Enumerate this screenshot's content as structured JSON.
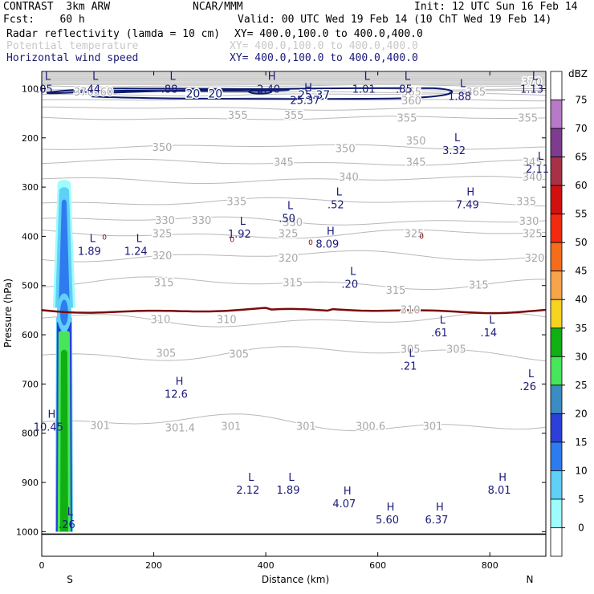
{
  "header": {
    "model": "CONTRAST  3km ARW",
    "org": "NCAR/MMM",
    "init": "Init: 12 UTC Sun 16 Feb 14",
    "fcst": "Fcst:    60 h",
    "valid": "Valid: 00 UTC Wed 19 Feb 14 (10 ChT Wed 19 Feb 14)",
    "fields": [
      {
        "name": "Radar reflectivity (lamda = 10 cm)",
        "xy": "XY= 400.0,100.0 to 400.0,400.0",
        "color": "#000000"
      },
      {
        "name": "Potential temperature",
        "xy": "XY= 400.0,100.0 to 400.0,400.0",
        "color": "#c8c8c8"
      },
      {
        "name": "Horizontal wind speed",
        "xy": "XY= 400.0,100.0 to 400.0,400.0",
        "color": "#1a1a7a"
      }
    ]
  },
  "chart_data": {
    "type": "cross-section",
    "xlabel": "Distance (km)",
    "ylabel": "Pressure (hPa)",
    "xlim": [
      0,
      900
    ],
    "ylim": [
      1050,
      65
    ],
    "x_ticks": [
      "0",
      "200",
      "400",
      "600",
      "800"
    ],
    "y_ticks": [
      "100",
      "200",
      "300",
      "400",
      "500",
      "600",
      "700",
      "800",
      "900",
      "1000"
    ],
    "x_end_labels": {
      "left": "S",
      "right": "N"
    },
    "colorbar": {
      "unit": "dBZ",
      "levels": [
        "0",
        "5",
        "10",
        "15",
        "20",
        "25",
        "30",
        "35",
        "40",
        "45",
        "50",
        "55",
        "60",
        "65",
        "70",
        "75"
      ],
      "colors": [
        "#ffffff",
        "#9ffcfc",
        "#5fd0f7",
        "#2e7bf0",
        "#2c3fd9",
        "#3b8cc2",
        "#47e65a",
        "#11b012",
        "#f5d31e",
        "#f7a54a",
        "#f56c1a",
        "#f22a0f",
        "#d21010",
        "#a83245",
        "#7e3c8e",
        "#b87ac8",
        "#ffffff"
      ]
    },
    "theta_labels": [
      {
        "t": "370",
        "x": 75,
        "p": 107
      },
      {
        "t": "370",
        "x": 875,
        "p": 87
      },
      {
        "t": "365",
        "x": 775,
        "p": 107
      },
      {
        "t": "365",
        "x": 660,
        "p": 107
      },
      {
        "t": "360",
        "x": 660,
        "p": 125
      },
      {
        "t": "360",
        "x": 110,
        "p": 107
      },
      {
        "t": "355",
        "x": 350,
        "p": 155
      },
      {
        "t": "355",
        "x": 450,
        "p": 155
      },
      {
        "t": "355",
        "x": 652,
        "p": 160
      },
      {
        "t": "355",
        "x": 868,
        "p": 160
      },
      {
        "t": "350",
        "x": 215,
        "p": 220
      },
      {
        "t": "350",
        "x": 542,
        "p": 222
      },
      {
        "t": "350",
        "x": 668,
        "p": 207
      },
      {
        "t": "345",
        "x": 432,
        "p": 250
      },
      {
        "t": "345",
        "x": 668,
        "p": 250
      },
      {
        "t": "345",
        "x": 876,
        "p": 250
      },
      {
        "t": "340",
        "x": 548,
        "p": 280
      },
      {
        "t": "340",
        "x": 876,
        "p": 280
      },
      {
        "t": "335",
        "x": 348,
        "p": 330
      },
      {
        "t": "335",
        "x": 865,
        "p": 330
      },
      {
        "t": "330",
        "x": 220,
        "p": 368
      },
      {
        "t": "330",
        "x": 285,
        "p": 368
      },
      {
        "t": "330",
        "x": 448,
        "p": 372
      },
      {
        "t": "330",
        "x": 870,
        "p": 370
      },
      {
        "t": "325",
        "x": 215,
        "p": 395
      },
      {
        "t": "325",
        "x": 440,
        "p": 395
      },
      {
        "t": "325",
        "x": 665,
        "p": 395
      },
      {
        "t": "325",
        "x": 876,
        "p": 395
      },
      {
        "t": "320",
        "x": 215,
        "p": 440
      },
      {
        "t": "320",
        "x": 440,
        "p": 445
      },
      {
        "t": "320",
        "x": 880,
        "p": 445
      },
      {
        "t": "315",
        "x": 218,
        "p": 495
      },
      {
        "t": "315",
        "x": 448,
        "p": 495
      },
      {
        "t": "315",
        "x": 632,
        "p": 510
      },
      {
        "t": "315",
        "x": 780,
        "p": 500
      },
      {
        "t": "310",
        "x": 212,
        "p": 570
      },
      {
        "t": "310",
        "x": 330,
        "p": 570
      },
      {
        "t": "310",
        "x": 658,
        "p": 550
      },
      {
        "t": "305",
        "x": 222,
        "p": 638
      },
      {
        "t": "305",
        "x": 352,
        "p": 640
      },
      {
        "t": "305",
        "x": 658,
        "p": 630
      },
      {
        "t": "305",
        "x": 740,
        "p": 630
      },
      {
        "t": "301",
        "x": 104,
        "p": 785
      },
      {
        "t": "301.4",
        "x": 247,
        "p": 790
      },
      {
        "t": "301",
        "x": 338,
        "p": 787
      },
      {
        "t": "301",
        "x": 472,
        "p": 787
      },
      {
        "t": "300.6",
        "x": 587,
        "p": 787
      },
      {
        "t": "301",
        "x": 698,
        "p": 787
      }
    ],
    "wind_contours": [
      {
        "level": "20",
        "x": 270,
        "p": 110
      },
      {
        "level": "20",
        "x": 310,
        "p": 110
      },
      {
        "level": "25.37",
        "x": 486,
        "p": 112
      }
    ],
    "freezing_labels": [
      {
        "t": "0",
        "x": 112,
        "p": 402
      },
      {
        "t": "0",
        "x": 340,
        "p": 407
      },
      {
        "t": "0",
        "x": 480,
        "p": 412
      },
      {
        "t": "0",
        "x": 678,
        "p": 400
      }
    ],
    "hl_markers": [
      {
        "s": "L",
        "v": ".05",
        "x": 5,
        "p": 85
      },
      {
        "s": "L",
        "v": ".44",
        "x": 90,
        "p": 85
      },
      {
        "s": "L",
        "v": ".88",
        "x": 228,
        "p": 85
      },
      {
        "s": "H",
        "v": "2.40",
        "x": 405,
        "p": 85
      },
      {
        "s": "L",
        "v": "1.01",
        "x": 575,
        "p": 85
      },
      {
        "s": "L",
        "v": ".85",
        "x": 647,
        "p": 85
      },
      {
        "s": "L",
        "v": "1.88",
        "x": 746,
        "p": 100
      },
      {
        "s": "L",
        "v": "1.13",
        "x": 875,
        "p": 85
      },
      {
        "s": "H",
        "v": "25.37",
        "x": 470,
        "p": 108
      },
      {
        "s": "L",
        "v": "3.32",
        "x": 736,
        "p": 210
      },
      {
        "s": "L",
        "v": "2.11",
        "x": 885,
        "p": 248
      },
      {
        "s": "L",
        "v": ".52",
        "x": 525,
        "p": 320
      },
      {
        "s": "H",
        "v": "7.49",
        "x": 760,
        "p": 320
      },
      {
        "s": "L",
        "v": ".50",
        "x": 438,
        "p": 348
      },
      {
        "s": "L",
        "v": "1.92",
        "x": 353,
        "p": 380
      },
      {
        "s": "H",
        "v": "8.09",
        "x": 510,
        "p": 400
      },
      {
        "s": "L",
        "v": "1.89",
        "x": 85,
        "p": 415
      },
      {
        "s": "L",
        "v": "1.24",
        "x": 168,
        "p": 415
      },
      {
        "s": "L",
        "v": ".20",
        "x": 550,
        "p": 482
      },
      {
        "s": "L",
        "v": ".61",
        "x": 710,
        "p": 580
      },
      {
        "s": "L",
        "v": ".14",
        "x": 798,
        "p": 580
      },
      {
        "s": "L",
        "v": ".21",
        "x": 655,
        "p": 648
      },
      {
        "s": "H",
        "v": "12.6",
        "x": 240,
        "p": 705
      },
      {
        "s": "L",
        "v": ".26",
        "x": 868,
        "p": 690
      },
      {
        "s": "H",
        "v": "10.45",
        "x": 12,
        "p": 772
      },
      {
        "s": "L",
        "v": "2.12",
        "x": 368,
        "p": 900
      },
      {
        "s": "L",
        "v": "1.89",
        "x": 440,
        "p": 900
      },
      {
        "s": "H",
        "v": "4.07",
        "x": 540,
        "p": 928
      },
      {
        "s": "H",
        "v": "5.60",
        "x": 617,
        "p": 960
      },
      {
        "s": "H",
        "v": "6.37",
        "x": 705,
        "p": 960
      },
      {
        "s": "H",
        "v": "8.01",
        "x": 817,
        "p": 900
      },
      {
        "s": "L",
        "v": ".26",
        "x": 45,
        "p": 970
      }
    ],
    "radar_column": {
      "x_center_km": 40,
      "top_hPa": 290,
      "bottom_hPa": 1000,
      "melting_level_hPa": 555
    }
  }
}
